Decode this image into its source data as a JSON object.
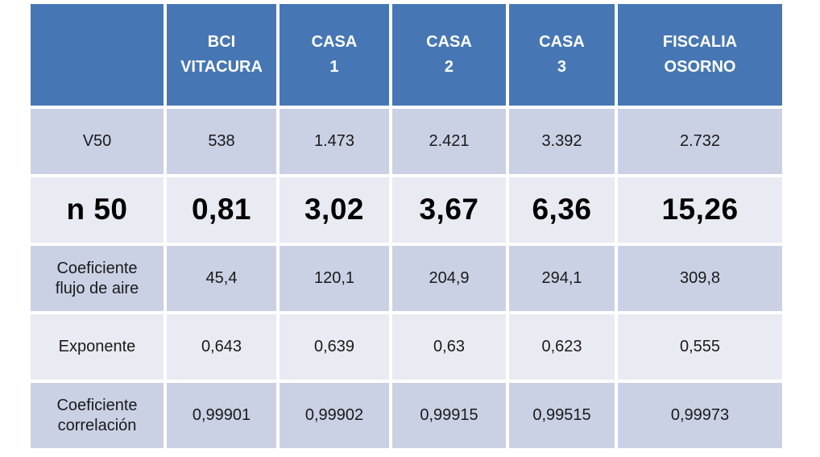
{
  "chart_data": {
    "type": "table",
    "columns": [
      "",
      "BCI VITACURA",
      "CASA 1",
      "CASA 2",
      "CASA 3",
      "FISCALIA OSORNO"
    ],
    "row_labels": [
      "V50",
      "n 50",
      "Coeficiente flujo de aire",
      "Exponente",
      "Coeficiente correlación"
    ],
    "rows": [
      [
        "538",
        "1.473",
        "2.421",
        "3.392",
        "2.732"
      ],
      [
        "0,81",
        "3,02",
        "3,67",
        "6,36",
        "15,26"
      ],
      [
        "45,4",
        "120,1",
        "204,9",
        "294,1",
        "309,8"
      ],
      [
        "0,643",
        "0,639",
        "0,63",
        "0,623",
        "0,555"
      ],
      [
        "0,99901",
        "0,99902",
        "0,99915",
        "0,99515",
        "0,99973"
      ]
    ],
    "emphasized_row": "n 50",
    "layout": {
      "header_position": "top",
      "banding": "alternating"
    }
  },
  "display": {
    "header_labels": [
      "",
      "BCI\nVITACURA",
      "CASA\n1",
      "CASA\n2",
      "CASA\n3",
      "FISCALIA\nOSORNO"
    ],
    "row_labels": [
      "V50",
      "n 50",
      "Coeficiente\nflujo de aire",
      "Exponente",
      "Coeficiente\ncorrelación"
    ]
  },
  "colors": {
    "header_bg": "#4677B4",
    "band_dark": "#CAD1E5",
    "band_light": "#E9EBF3",
    "header_text": "#FFFFFF",
    "body_text": "#1A1A1A",
    "grid": "#FFFFFF",
    "page_bg": "#FFFFFF"
  }
}
